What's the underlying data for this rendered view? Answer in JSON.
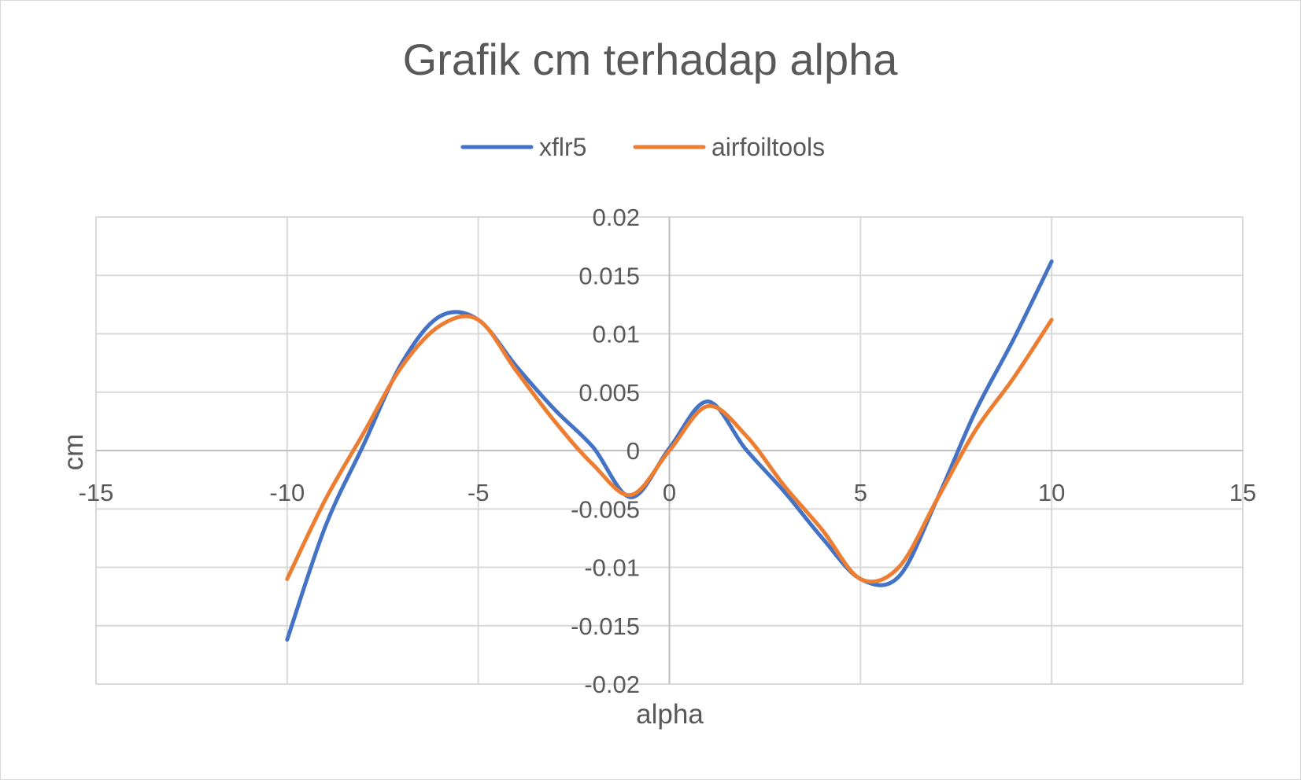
{
  "chart_data": {
    "type": "line",
    "title": "Grafik cm terhadap alpha",
    "xlabel": "alpha",
    "ylabel": "cm",
    "xlim": [
      -15,
      15
    ],
    "ylim": [
      -0.02,
      0.02
    ],
    "x_ticks": [
      "-15",
      "-10",
      "-5",
      "0",
      "5",
      "10",
      "15"
    ],
    "y_ticks": [
      "0.02",
      "0.015",
      "0.01",
      "0.005",
      "0",
      "-0.005",
      "-0.01",
      "-0.015",
      "-0.02"
    ],
    "grid": true,
    "legend": "top",
    "smooth": true,
    "series": [
      {
        "name": "xflr5",
        "color": "#4472c4",
        "x": [
          -10,
          -9,
          -8,
          -7,
          -6,
          -5,
          -4,
          -3,
          -2,
          -1,
          0,
          1,
          2,
          3,
          4,
          5,
          6,
          7,
          8,
          9,
          10
        ],
        "y": [
          -0.0162,
          -0.0065,
          0.0005,
          0.0075,
          0.0115,
          0.0112,
          0.0072,
          0.0035,
          0.0003,
          -0.004,
          0.0002,
          0.0042,
          0.0001,
          -0.0035,
          -0.0075,
          -0.011,
          -0.0108,
          -0.0042,
          0.0033,
          0.0095,
          0.0162
        ]
      },
      {
        "name": "airfoiltools",
        "color": "#ed7d31",
        "x": [
          -10,
          -9,
          -8,
          -7,
          -6,
          -5,
          -4,
          -3,
          -2,
          -1,
          0,
          1,
          2,
          3,
          4,
          5,
          6,
          7,
          8,
          9,
          10
        ],
        "y": [
          -0.011,
          -0.0042,
          0.0015,
          0.0072,
          0.0107,
          0.0112,
          0.0068,
          0.0025,
          -0.0012,
          -0.0038,
          0.0,
          0.0038,
          0.0013,
          -0.003,
          -0.0068,
          -0.011,
          -0.01,
          -0.0042,
          0.0017,
          0.0062,
          0.0112
        ]
      }
    ]
  }
}
